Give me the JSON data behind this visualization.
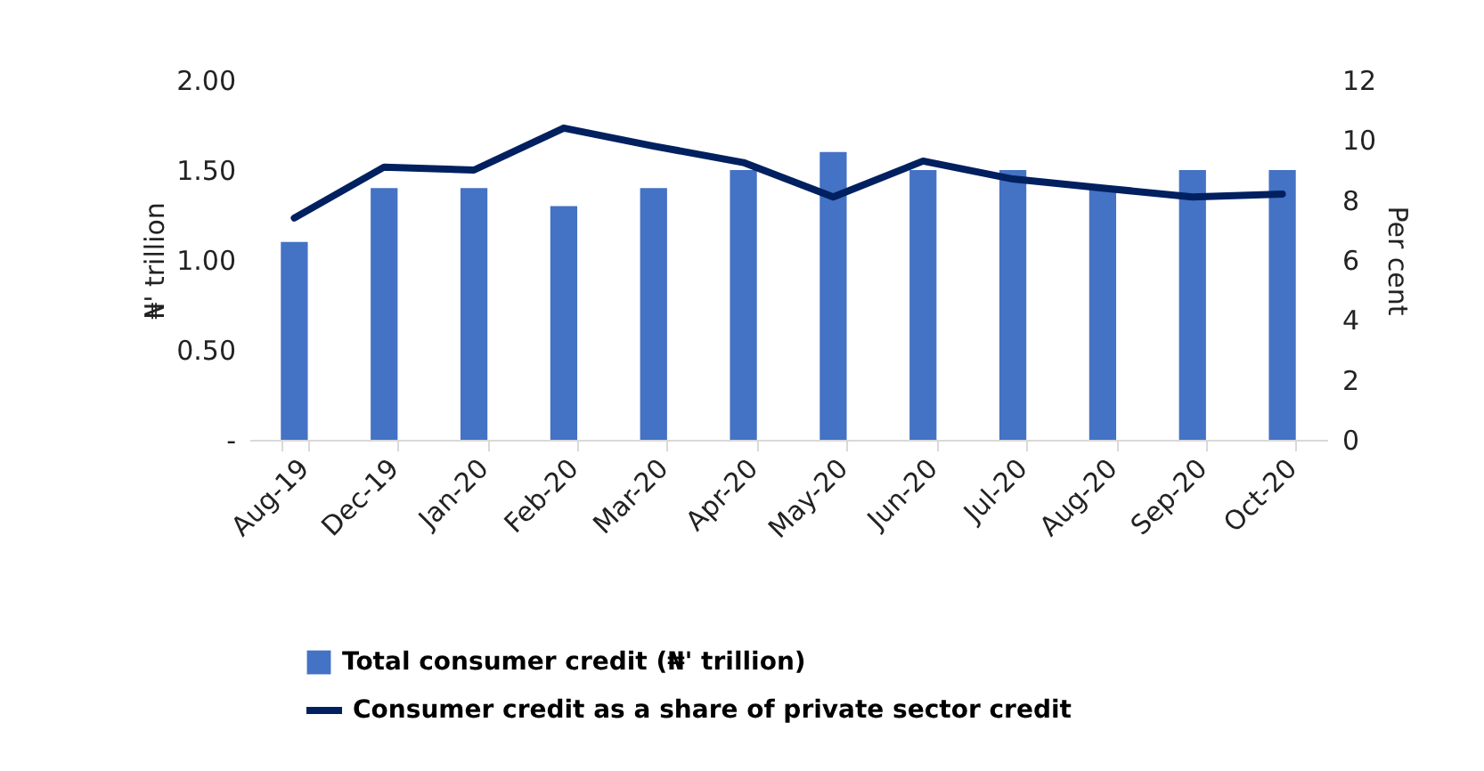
{
  "chart_data": {
    "type": "bar",
    "categories": [
      "Aug-19",
      "Dec-19",
      "Jan-20",
      "Feb-20",
      "Mar-20",
      "Apr-20",
      "May-20",
      "Jun-20",
      "Jul-20",
      "Aug-20",
      "Sep-20",
      "Oct-20"
    ],
    "series": [
      {
        "name": "Total consumer credit (₦' trillion)",
        "color": "#4472c4",
        "values": [
          1.1,
          1.4,
          1.4,
          1.3,
          1.4,
          1.5,
          1.6,
          1.5,
          1.5,
          1.4,
          1.5,
          1.5
        ]
      },
      {
        "name": "Consumer credit as a share of private sector credit",
        "type": "line",
        "axis": "y2",
        "color": "#002060",
        "values": [
          7.4,
          9.1,
          9.0,
          10.4,
          9.8,
          9.25,
          8.1,
          9.3,
          8.7,
          8.4,
          8.1,
          8.2
        ]
      }
    ],
    "ylabel": "₦' trillion",
    "y2label": "Per cent",
    "ylim": [
      0,
      2
    ],
    "yticks": [
      {
        "value": 0,
        "label": "-"
      },
      {
        "value": 0.5,
        "label": "0.50"
      },
      {
        "value": 1,
        "label": "1.00"
      },
      {
        "value": 1.5,
        "label": "1.50"
      },
      {
        "value": 2,
        "label": "2.00"
      }
    ],
    "y2lim": [
      0,
      12
    ],
    "y2ticks": [
      0,
      2,
      4,
      6,
      8,
      10,
      12
    ],
    "legend": "bottom left",
    "grid": false
  }
}
